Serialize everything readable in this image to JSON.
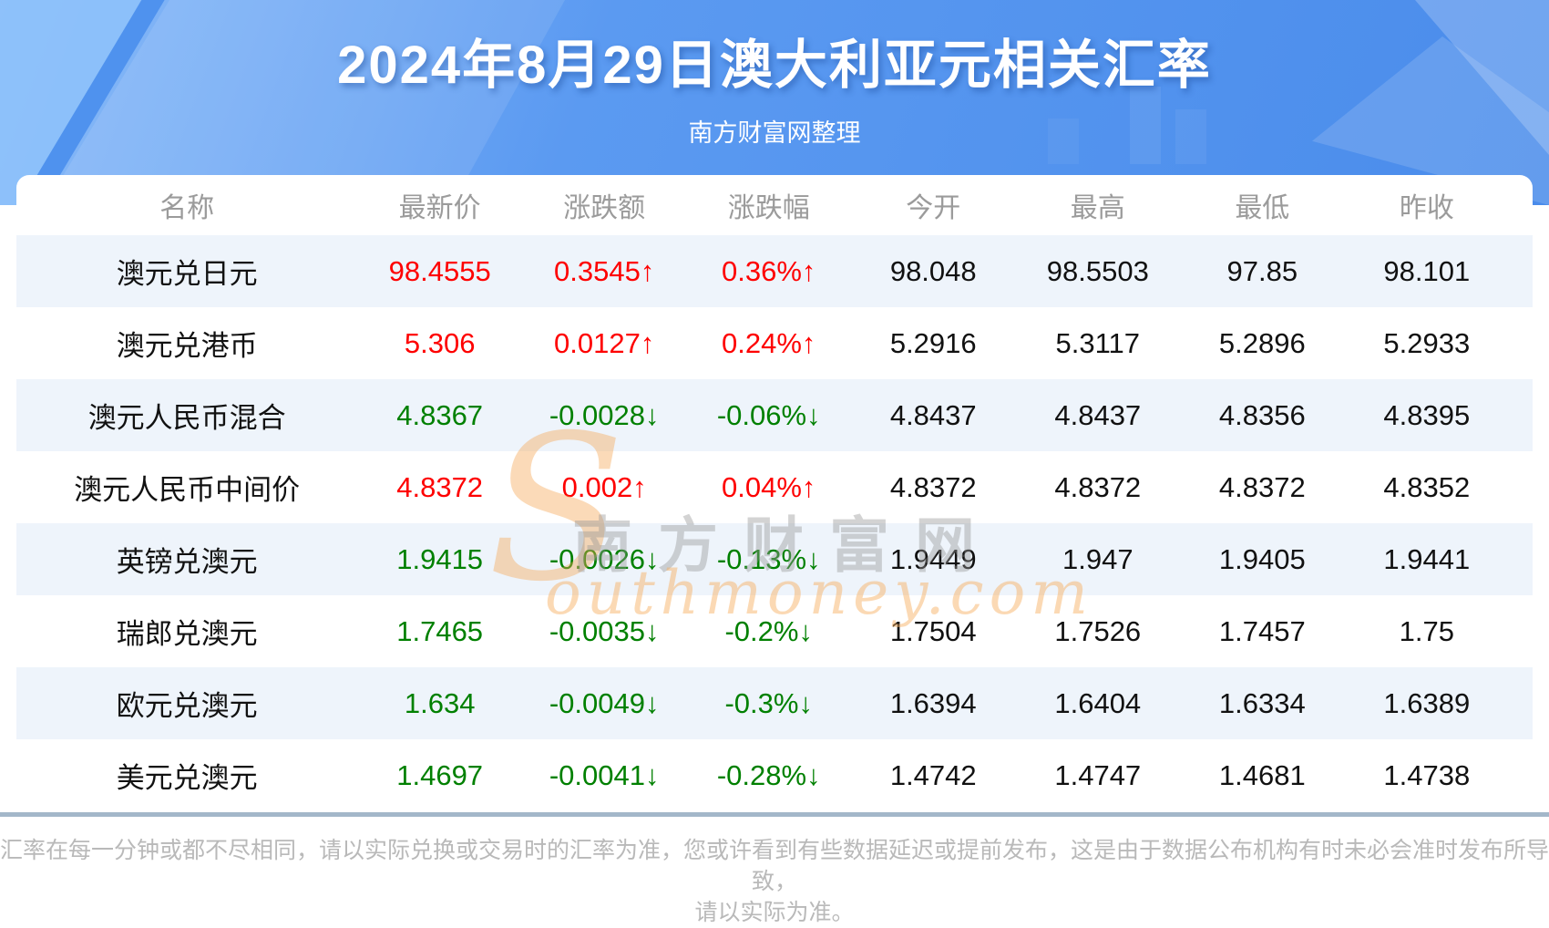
{
  "header": {
    "title": "2024年8月29日澳大利亚元相关汇率",
    "subtitle": "南方财富网整理"
  },
  "chart_data": {
    "type": "table",
    "title": "2024年8月29日澳大利亚元相关汇率",
    "columns": [
      "名称",
      "最新价",
      "涨跌额",
      "涨跌幅",
      "今开",
      "最高",
      "最低",
      "昨收"
    ],
    "rows": [
      {
        "name": "澳元兑日元",
        "latest": "98.4555",
        "change": "0.3545↑",
        "change_pct": "0.36%↑",
        "direction": "up",
        "open": "98.048",
        "high": "98.5503",
        "low": "97.85",
        "prev_close": "98.101"
      },
      {
        "name": "澳元兑港币",
        "latest": "5.306",
        "change": "0.0127↑",
        "change_pct": "0.24%↑",
        "direction": "up",
        "open": "5.2916",
        "high": "5.3117",
        "low": "5.2896",
        "prev_close": "5.2933"
      },
      {
        "name": "澳元人民币混合",
        "latest": "4.8367",
        "change": "-0.0028↓",
        "change_pct": "-0.06%↓",
        "direction": "down",
        "open": "4.8437",
        "high": "4.8437",
        "low": "4.8356",
        "prev_close": "4.8395"
      },
      {
        "name": "澳元人民币中间价",
        "latest": "4.8372",
        "change": "0.002↑",
        "change_pct": "0.04%↑",
        "direction": "up",
        "open": "4.8372",
        "high": "4.8372",
        "low": "4.8372",
        "prev_close": "4.8352"
      },
      {
        "name": "英镑兑澳元",
        "latest": "1.9415",
        "change": "-0.0026↓",
        "change_pct": "-0.13%↓",
        "direction": "down",
        "open": "1.9449",
        "high": "1.947",
        "low": "1.9405",
        "prev_close": "1.9441"
      },
      {
        "name": "瑞郎兑澳元",
        "latest": "1.7465",
        "change": "-0.0035↓",
        "change_pct": "-0.2%↓",
        "direction": "down",
        "open": "1.7504",
        "high": "1.7526",
        "low": "1.7457",
        "prev_close": "1.75"
      },
      {
        "name": "欧元兑澳元",
        "latest": "1.634",
        "change": "-0.0049↓",
        "change_pct": "-0.3%↓",
        "direction": "down",
        "open": "1.6394",
        "high": "1.6404",
        "low": "1.6334",
        "prev_close": "1.6389"
      },
      {
        "name": "美元兑澳元",
        "latest": "1.4697",
        "change": "-0.0041↓",
        "change_pct": "-0.28%↓",
        "direction": "down",
        "open": "1.4742",
        "high": "1.4747",
        "low": "1.4681",
        "prev_close": "1.4738"
      }
    ]
  },
  "watermark": {
    "initial": "S",
    "cn": "南方财富网",
    "en": "outhmoney.com"
  },
  "footer": {
    "line1": "汇率在每一分钟或都不尽相同，请以实际兑换或交易时的汇率为准，您或许看到有些数据延迟或提前发布，这是由于数据公布机构有时未必会准时发布所导致，",
    "line2": "请以实际为准。"
  },
  "colors": {
    "up": "#fe0000",
    "down": "#008000",
    "stripe": "#eef4fb",
    "banner": "#5596f0"
  }
}
